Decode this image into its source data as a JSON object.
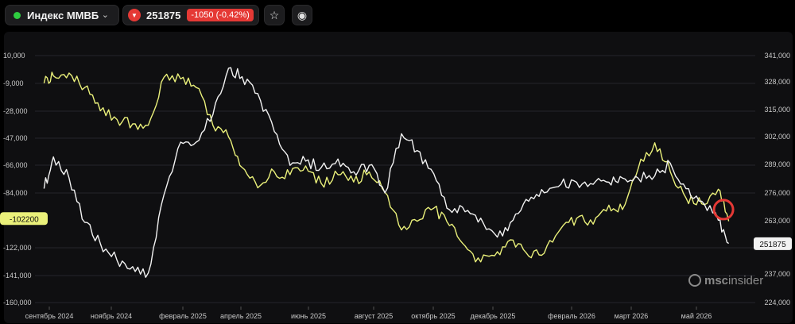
{
  "header": {
    "symbol": "Индекс ММВБ",
    "chevron": "⌄",
    "status_color": "#2ecc40",
    "price": "251875",
    "change": "-1050 (-0.42%)",
    "down_icon": "▼",
    "star_icon": "☆",
    "eye_icon": "◉"
  },
  "chart_data": {
    "type": "line",
    "left_axis_ticks": [
      "10,000",
      "-9,000",
      "-28,000",
      "-47,000",
      "-66,000",
      "-84,000",
      "-122,000",
      "-141,000",
      "-160,000"
    ],
    "right_axis_ticks": [
      "341,000",
      "328,000",
      "315,000",
      "302,000",
      "289,000",
      "276,000",
      "263,000",
      "237,000",
      "224,000"
    ],
    "left_ylim": [
      -160000,
      10000
    ],
    "right_ylim": [
      224000,
      341000
    ],
    "x_tick_labels": [
      "сентябрь 2024",
      "ноябрь 2024",
      "февраль 2025",
      "апрель 2025",
      "июнь 2025",
      "август 2025",
      "октябрь 2025",
      "декабрь 2025",
      "февраль 2026",
      "март 2026",
      "май 2026"
    ],
    "grid": true,
    "series": [
      {
        "axis": "left",
        "color": "#eaf07a",
        "x": [
          "2024-08-27",
          "2024-09-05",
          "2024-09-20",
          "2024-10-05",
          "2024-10-20",
          "2024-11-05",
          "2024-11-20",
          "2024-12-05",
          "2024-12-20",
          "2025-01-05",
          "2025-01-20",
          "2025-02-05",
          "2025-02-20",
          "2025-03-05",
          "2025-03-20",
          "2025-04-05",
          "2025-04-20",
          "2025-05-05",
          "2025-05-20",
          "2025-06-05",
          "2025-06-20",
          "2025-07-05",
          "2025-07-20",
          "2025-08-05",
          "2025-08-20",
          "2025-09-05",
          "2025-09-20",
          "2025-10-05",
          "2025-10-20",
          "2025-11-05",
          "2025-11-20",
          "2025-12-05",
          "2025-12-20",
          "2026-01-05",
          "2026-01-20",
          "2026-02-05",
          "2026-02-20",
          "2026-03-05",
          "2026-03-20",
          "2026-04-05",
          "2026-04-20",
          "2026-05-05",
          "2026-05-20",
          "2026-06-05",
          "2026-06-15"
        ],
        "values": [
          -9000,
          -4000,
          -2000,
          -12000,
          -28000,
          -34000,
          -37000,
          -38000,
          -5000,
          -6000,
          -12000,
          -38000,
          -46000,
          -67000,
          -81000,
          -70000,
          -72000,
          -66000,
          -78000,
          -72000,
          -77000,
          -70000,
          -84000,
          -110000,
          -104000,
          -95000,
          -107000,
          -121000,
          -132000,
          -125000,
          -117000,
          -128000,
          -126000,
          -109000,
          -102000,
          -106000,
          -93000,
          -96000,
          -68000,
          -50000,
          -70000,
          -88000,
          -92000,
          -82000,
          -104000
        ]
      },
      {
        "axis": "right",
        "color": "#f2f2f2",
        "x": [
          "2024-08-27",
          "2024-09-05",
          "2024-09-20",
          "2024-10-05",
          "2024-10-20",
          "2024-11-05",
          "2024-11-20",
          "2024-12-05",
          "2024-12-20",
          "2025-01-05",
          "2025-01-20",
          "2025-02-05",
          "2025-02-20",
          "2025-03-05",
          "2025-03-20",
          "2025-04-05",
          "2025-04-20",
          "2025-05-05",
          "2025-05-20",
          "2025-06-05",
          "2025-06-20",
          "2025-07-05",
          "2025-07-20",
          "2025-08-05",
          "2025-08-20",
          "2025-09-05",
          "2025-09-20",
          "2025-10-05",
          "2025-10-20",
          "2025-11-05",
          "2025-11-20",
          "2025-12-05",
          "2025-12-20",
          "2026-01-05",
          "2026-01-20",
          "2026-02-05",
          "2026-02-20",
          "2026-03-05",
          "2026-03-20",
          "2026-04-05",
          "2026-04-20",
          "2026-05-05",
          "2026-05-20",
          "2026-06-05",
          "2026-06-15"
        ],
        "values": [
          278000,
          293000,
          283000,
          262000,
          252000,
          244000,
          241000,
          238000,
          275000,
          300000,
          300000,
          313000,
          335000,
          331000,
          323000,
          305000,
          289000,
          291000,
          288000,
          292000,
          286000,
          289000,
          276000,
          304000,
          296000,
          285000,
          268000,
          267000,
          264000,
          255000,
          263000,
          272000,
          276000,
          280000,
          281000,
          280000,
          281000,
          283000,
          283000,
          284000,
          290000,
          278000,
          272000,
          263000,
          252000
        ]
      }
    ],
    "current_left_value": "-102200",
    "current_right_value": "251875"
  },
  "watermark": {
    "text_bold": "msc",
    "text_rest": "insider"
  }
}
